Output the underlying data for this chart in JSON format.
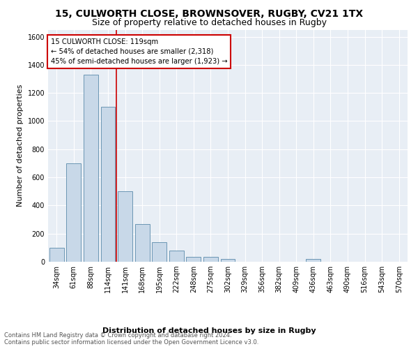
{
  "title": "15, CULWORTH CLOSE, BROWNSOVER, RUGBY, CV21 1TX",
  "subtitle": "Size of property relative to detached houses in Rugby",
  "xlabel": "Distribution of detached houses by size in Rugby",
  "ylabel": "Number of detached properties",
  "categories": [
    "34sqm",
    "61sqm",
    "88sqm",
    "114sqm",
    "141sqm",
    "168sqm",
    "195sqm",
    "222sqm",
    "248sqm",
    "275sqm",
    "302sqm",
    "329sqm",
    "356sqm",
    "382sqm",
    "409sqm",
    "436sqm",
    "463sqm",
    "490sqm",
    "516sqm",
    "543sqm",
    "570sqm"
  ],
  "values": [
    100,
    700,
    1330,
    1100,
    500,
    270,
    140,
    80,
    35,
    35,
    20,
    0,
    0,
    0,
    0,
    20,
    0,
    0,
    0,
    0,
    0
  ],
  "bar_color": "#c8d8e8",
  "bar_edge_color": "#5a8aaa",
  "annotation_title": "15 CULWORTH CLOSE: 119sqm",
  "annotation_line1": "← 54% of detached houses are smaller (2,318)",
  "annotation_line2": "45% of semi-detached houses are larger (1,923) →",
  "annotation_box_color": "#ffffff",
  "annotation_box_edge_color": "#cc0000",
  "red_line_after_index": 3,
  "ylim": [
    0,
    1650
  ],
  "yticks": [
    0,
    200,
    400,
    600,
    800,
    1000,
    1200,
    1400,
    1600
  ],
  "bg_color": "#ffffff",
  "plot_bg_color": "#e8eef5",
  "grid_color": "#ffffff",
  "title_fontsize": 10,
  "subtitle_fontsize": 9,
  "ylabel_fontsize": 8,
  "tick_fontsize": 7,
  "footer_line1": "Contains HM Land Registry data © Crown copyright and database right 2024.",
  "footer_line2": "Contains public sector information licensed under the Open Government Licence v3.0."
}
